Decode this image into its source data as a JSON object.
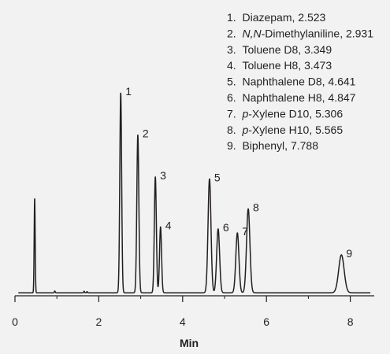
{
  "chart_data": {
    "type": "line",
    "title": "",
    "xlabel": "Min",
    "ylabel": "",
    "xlim": [
      0,
      8.5
    ],
    "ylim": [
      0,
      100
    ],
    "grid": false,
    "x_ticks": [
      0,
      2,
      4,
      6,
      8
    ],
    "x_tick_labels": [
      "0",
      "2",
      "4",
      "6",
      "8"
    ],
    "baseline": 1.5,
    "line_color": "#231f20",
    "background_color": "#f2f2f2",
    "legend_placement": "top-right",
    "unlabeled_peaks": [
      {
        "x": 0.47,
        "height": 47,
        "width": 0.012
      }
    ],
    "peaks": [
      {
        "label": "1",
        "compound": "Diazepam",
        "compound_parts": [
          {
            "text": "Diazepam",
            "italic": false
          }
        ],
        "retention_time": 2.523,
        "legend_text": ", 2.523",
        "height": 100,
        "width": 0.022
      },
      {
        "label": "2",
        "compound": "N,N-Dimethylaniline",
        "compound_parts": [
          {
            "text": "N,N",
            "italic": true
          },
          {
            "text": "-Dimethylaniline",
            "italic": false
          }
        ],
        "retention_time": 2.931,
        "legend_text": ", 2.931",
        "height": 79,
        "width": 0.024
      },
      {
        "label": "3",
        "compound": "Toluene D8",
        "compound_parts": [
          {
            "text": "Toluene D8",
            "italic": false
          }
        ],
        "retention_time": 3.349,
        "legend_text": ", 3.349",
        "height": 58,
        "width": 0.024
      },
      {
        "label": "4",
        "compound": "Toluene H8",
        "compound_parts": [
          {
            "text": "Toluene H8",
            "italic": false
          }
        ],
        "retention_time": 3.473,
        "legend_text": ", 3.473",
        "height": 33,
        "width": 0.024
      },
      {
        "label": "5",
        "compound": "Naphthalene D8",
        "compound_parts": [
          {
            "text": "Naphthalene D8",
            "italic": false
          }
        ],
        "retention_time": 4.641,
        "legend_text": ", 4.641",
        "height": 57,
        "width": 0.035
      },
      {
        "label": "6",
        "compound": "Naphthalene H8",
        "compound_parts": [
          {
            "text": "Naphthalene H8",
            "italic": false
          }
        ],
        "retention_time": 4.847,
        "legend_text": ", 4.847",
        "height": 32,
        "width": 0.035
      },
      {
        "label": "7",
        "compound": "p-Xylene D10",
        "compound_parts": [
          {
            "text": "p",
            "italic": true
          },
          {
            "text": "-Xylene D10",
            "italic": false
          }
        ],
        "retention_time": 5.306,
        "legend_text": ", 5.306",
        "height": 30,
        "width": 0.037
      },
      {
        "label": "8",
        "compound": "p-Xylene H10",
        "compound_parts": [
          {
            "text": "p",
            "italic": true
          },
          {
            "text": "-Xylene H10",
            "italic": false
          }
        ],
        "retention_time": 5.565,
        "legend_text": ", 5.565",
        "height": 42,
        "width": 0.04
      },
      {
        "label": "9",
        "compound": "Biphenyl",
        "compound_parts": [
          {
            "text": "Biphenyl",
            "italic": false
          }
        ],
        "retention_time": 7.788,
        "legend_text": ", 7.788",
        "height": 19,
        "width": 0.065
      }
    ]
  }
}
